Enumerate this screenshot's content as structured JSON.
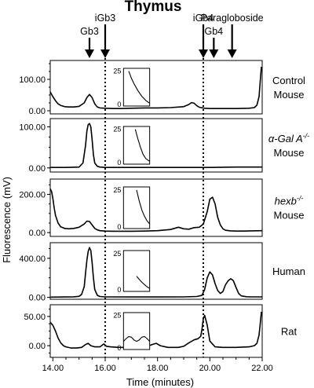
{
  "title": "Thymus",
  "xlabel": "Time (minutes)",
  "ylabel": "Fluorescence (mV)",
  "markers": [
    {
      "label": "Gb3",
      "x": 15.4,
      "dotted": false
    },
    {
      "label": "iGb3",
      "x": 16.0,
      "dotted": true
    },
    {
      "label": "iGb4",
      "x": 19.75,
      "dotted": true
    },
    {
      "label": "Gb4",
      "x": 20.15,
      "dotted": false
    },
    {
      "label": "Paragloboside",
      "x": 20.85,
      "dotted": false
    }
  ],
  "chart_data": {
    "type": "line",
    "title": "Thymus",
    "xlabel": "Time (minutes)",
    "ylabel": "Fluorescence (mV)",
    "xlim": [
      13.9,
      22.0
    ],
    "x_ticks": [
      "14.00",
      "16.00",
      "18.00",
      "20.00",
      "22.00"
    ],
    "x_tick_values": [
      14,
      16,
      18,
      20,
      22
    ],
    "inset_ticks": [
      "25",
      "0"
    ],
    "panels": [
      {
        "label_parts": [
          "Control",
          "Mouse"
        ],
        "italic": false,
        "superscript": "",
        "ylim": [
          -10,
          160
        ],
        "y_ticks": [
          {
            "v": 0,
            "label": "0.00"
          },
          {
            "v": 100,
            "label": "100.00"
          }
        ],
        "inset": {
          "x0": 16.7,
          "x1": 17.7
        },
        "series": {
          "x": [
            13.9,
            14.0,
            14.1,
            14.2,
            14.3,
            14.45,
            14.6,
            14.8,
            15.0,
            15.2,
            15.3,
            15.4,
            15.5,
            15.6,
            15.7,
            15.8,
            16.0,
            16.3,
            16.6,
            17.0,
            17.5,
            18.0,
            18.5,
            19.0,
            19.2,
            19.3,
            19.4,
            19.5,
            19.6,
            19.8,
            20.0,
            20.5,
            21.0,
            21.5,
            21.7,
            21.8,
            21.88,
            21.93,
            21.97
          ],
          "y": [
            60,
            45,
            32,
            22,
            17,
            13,
            12,
            12,
            14,
            25,
            42,
            52,
            42,
            22,
            12,
            9,
            8,
            7,
            7,
            8,
            9,
            9,
            10,
            13,
            20,
            26,
            24,
            16,
            11,
            8,
            7,
            7,
            7,
            8,
            10,
            18,
            45,
            100,
            140
          ]
        },
        "inset_curve": {
          "x": [
            0.2,
            0.3,
            0.4,
            0.55,
            0.7,
            0.85,
            1.0
          ],
          "y": [
            25,
            20,
            16,
            11,
            7,
            4,
            2
          ]
        }
      },
      {
        "label_parts": [
          "α-Gal A",
          "Mouse"
        ],
        "italic": true,
        "superscript": "-/-",
        "ylim": [
          -10,
          120
        ],
        "y_ticks": [
          {
            "v": 0,
            "label": "0.00"
          },
          {
            "v": 100,
            "label": "100.00"
          }
        ],
        "inset": {
          "x0": 16.7,
          "x1": 17.7
        },
        "series": {
          "x": [
            13.9,
            14.5,
            15.0,
            15.15,
            15.25,
            15.3,
            15.35,
            15.4,
            15.45,
            15.5,
            15.55,
            15.6,
            15.7,
            15.8,
            16.0,
            17.0,
            18.0,
            19.0,
            20.0,
            21.0,
            22.0
          ],
          "y": [
            1,
            1,
            2,
            12,
            55,
            90,
            105,
            108,
            100,
            70,
            32,
            12,
            4,
            2,
            1,
            1,
            1,
            1,
            1,
            2,
            2
          ],
          "x_max": 22.0
        },
        "inset_curve": {
          "x": [
            0.45,
            0.55,
            0.65,
            0.75,
            0.85,
            1.0
          ],
          "y": [
            25,
            18,
            12,
            7,
            4,
            2
          ]
        }
      },
      {
        "label_parts": [
          "hexb",
          "Mouse"
        ],
        "italic": true,
        "superscript": "-/-",
        "ylim": [
          -20,
          280
        ],
        "y_ticks": [
          {
            "v": 0,
            "label": "0.00"
          },
          {
            "v": 200,
            "label": "200.00"
          }
        ],
        "inset": {
          "x0": 16.7,
          "x1": 17.7
        },
        "series": {
          "x": [
            13.9,
            13.95,
            14.0,
            14.05,
            14.1,
            14.2,
            14.3,
            14.45,
            14.6,
            14.8,
            15.0,
            15.2,
            15.3,
            15.4,
            15.5,
            15.6,
            15.7,
            15.8,
            16.0,
            16.3,
            16.6,
            17.0,
            17.5,
            18.0,
            18.5,
            18.8,
            19.0,
            19.2,
            19.4,
            19.6,
            19.75,
            19.9,
            20.0,
            20.1,
            20.2,
            20.3,
            20.4,
            20.5,
            20.6,
            20.8,
            21.0,
            21.3,
            21.6,
            22.0
          ],
          "y": [
            230,
            215,
            180,
            130,
            90,
            50,
            30,
            22,
            20,
            22,
            28,
            45,
            60,
            58,
            40,
            22,
            14,
            10,
            8,
            7,
            7,
            7,
            8,
            10,
            16,
            28,
            20,
            18,
            26,
            28,
            45,
            110,
            175,
            185,
            150,
            80,
            40,
            20,
            12,
            9,
            8,
            8,
            9,
            10
          ]
        },
        "inset_curve": {
          "x": [
            0.5,
            0.6,
            0.7,
            0.8,
            0.9,
            1.0
          ],
          "y": [
            25,
            18,
            12,
            8,
            5,
            3
          ]
        }
      },
      {
        "label_parts": [
          "Human"
        ],
        "italic": false,
        "superscript": "",
        "ylim": [
          -20,
          560
        ],
        "y_ticks": [
          {
            "v": 0,
            "label": "0.00"
          },
          {
            "v": 400,
            "label": "400.00"
          }
        ],
        "inset": {
          "x0": 16.7,
          "x1": 17.7
        },
        "series": {
          "x": [
            13.9,
            14.5,
            14.8,
            15.0,
            15.1,
            15.2,
            15.25,
            15.3,
            15.35,
            15.4,
            15.45,
            15.5,
            15.55,
            15.6,
            15.7,
            15.8,
            16.0,
            17.0,
            18.0,
            19.0,
            19.5,
            19.7,
            19.8,
            19.9,
            20.0,
            20.1,
            20.2,
            20.3,
            20.4,
            20.5,
            20.6,
            20.7,
            20.8,
            20.9,
            21.0,
            21.1,
            21.2,
            21.4,
            21.6,
            22.0
          ],
          "y": [
            2,
            3,
            5,
            10,
            30,
            110,
            250,
            380,
            470,
            510,
            480,
            360,
            200,
            80,
            20,
            8,
            4,
            3,
            3,
            4,
            8,
            20,
            80,
            200,
            260,
            230,
            140,
            70,
            40,
            60,
            130,
            170,
            190,
            170,
            100,
            40,
            15,
            6,
            4,
            4
          ]
        },
        "inset_curve": {
          "x": [
            0.5,
            0.6,
            0.7,
            0.8,
            0.9,
            1.0
          ],
          "y": [
            10,
            8,
            6,
            4.5,
            3,
            2
          ]
        }
      },
      {
        "label_parts": [
          "Rat"
        ],
        "italic": false,
        "superscript": "",
        "ylim": [
          -20,
          70
        ],
        "y_ticks": [
          {
            "v": 0,
            "label": "0.00"
          },
          {
            "v": 50,
            "label": "50.00"
          }
        ],
        "inset": {
          "x0": 16.7,
          "x1": 17.7
        },
        "series": {
          "x": [
            13.9,
            14.0,
            14.1,
            14.2,
            14.3,
            14.4,
            14.5,
            14.7,
            14.9,
            15.1,
            15.25,
            15.35,
            15.45,
            15.6,
            15.8,
            15.95,
            16.05,
            16.2,
            16.5,
            17.0,
            17.5,
            17.8,
            17.95,
            18.1,
            18.4,
            18.8,
            19.0,
            19.2,
            19.4,
            19.55,
            19.65,
            19.7,
            19.75,
            19.8,
            19.9,
            20.0,
            20.2,
            20.5,
            21.0,
            21.5,
            21.7,
            21.8,
            21.88,
            21.93,
            21.97
          ],
          "y": [
            40,
            35,
            25,
            13,
            5,
            0,
            -2,
            -4,
            -4,
            -3,
            2,
            4,
            0,
            -2,
            -2,
            3,
            -1,
            -2,
            -3,
            -3,
            -3,
            2,
            4,
            0,
            -3,
            -3,
            -1,
            5,
            10,
            12,
            16,
            28,
            46,
            52,
            35,
            8,
            -2,
            -3,
            -3,
            -2,
            0,
            4,
            18,
            40,
            58
          ]
        },
        "inset_curve": {
          "x": [
            0.0,
            0.1,
            0.2,
            0.3,
            0.4,
            0.5,
            0.6,
            0.7,
            0.8,
            0.9,
            1.0
          ],
          "y": [
            6,
            8,
            9.5,
            9,
            7,
            6,
            7,
            9,
            9.5,
            8,
            6
          ]
        }
      }
    ]
  }
}
